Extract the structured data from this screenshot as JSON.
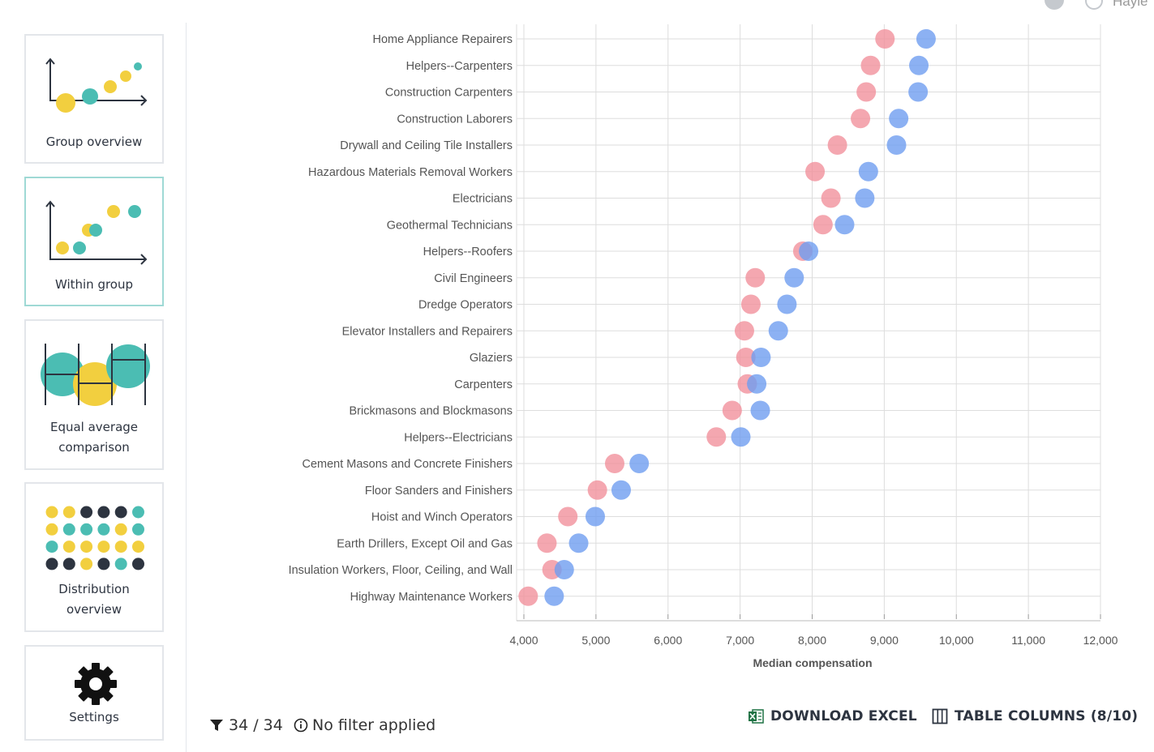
{
  "sidebar": {
    "items": [
      {
        "label": "Group overview"
      },
      {
        "label": "Within group"
      },
      {
        "label_line1": "Equal average",
        "label_line2": "comparison"
      },
      {
        "label_line1": "Distribution",
        "label_line2": "overview"
      },
      {
        "label": "Settings"
      }
    ]
  },
  "header": {
    "user_name": "Hayle"
  },
  "colors": {
    "female": "#f1919c",
    "male": "#6f9ef0",
    "teal": "#4bbdb3",
    "yellow": "#f2cf3f",
    "navy": "#2d3440"
  },
  "chart_data": {
    "type": "scatter",
    "xlabel": "Median compensation",
    "xlim": [
      4000,
      12000
    ],
    "xticks": [
      4000,
      5000,
      6000,
      7000,
      8000,
      9000,
      10000,
      11000,
      12000
    ],
    "xtick_labels": [
      "4,000",
      "5,000",
      "6,000",
      "7,000",
      "8,000",
      "9,000",
      "10,000",
      "11,000",
      "12,000"
    ],
    "categories": [
      "Home Appliance Repairers",
      "Helpers--Carpenters",
      "Construction Carpenters",
      "Construction Laborers",
      "Drywall and Ceiling Tile Installers",
      "Hazardous Materials Removal Workers",
      "Electricians",
      "Geothermal Technicians",
      "Helpers--Roofers",
      "Civil Engineers",
      "Dredge Operators",
      "Elevator Installers and Repairers",
      "Glaziers",
      "Carpenters",
      "Brickmasons and Blockmasons",
      "Helpers--Electricians",
      "Cement Masons and Concrete Finishers",
      "Floor Sanders and Finishers",
      "Hoist and Winch Operators",
      "Earth Drillers, Except Oil and Gas",
      "Insulation Workers, Floor, Ceiling, and Wall",
      "Highway Maintenance Workers"
    ],
    "series": [
      {
        "color": "#f1919c",
        "values": [
          9010,
          8810,
          8750,
          8670,
          8350,
          8040,
          8260,
          8150,
          7870,
          7210,
          7150,
          7060,
          7080,
          7100,
          6890,
          6670,
          5260,
          5020,
          4610,
          4320,
          4390,
          4060
        ]
      },
      {
        "color": "#6f9ef0",
        "values": [
          9580,
          9480,
          9470,
          9200,
          9170,
          8780,
          8730,
          8450,
          7950,
          7750,
          7650,
          7530,
          7290,
          7230,
          7280,
          7010,
          5600,
          5350,
          4990,
          4760,
          4560,
          4420
        ]
      }
    ]
  },
  "footer": {
    "filter_count": "34 / 34",
    "filter_status": "No filter applied",
    "download_label": "DOWNLOAD EXCEL",
    "columns_label": "TABLE COLUMNS (8/10)"
  }
}
